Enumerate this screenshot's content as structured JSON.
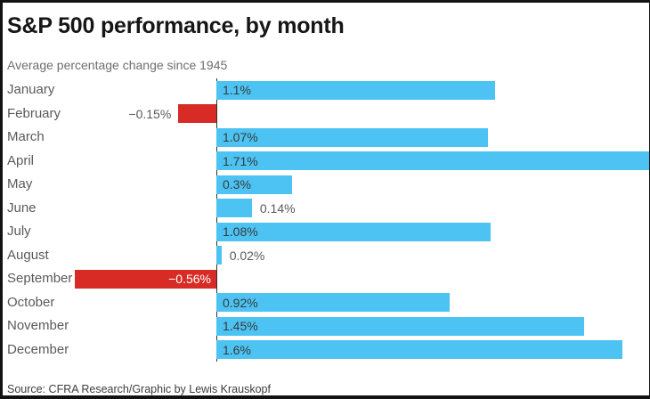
{
  "header": {
    "title": "S&P 500 performance, by month",
    "subtitle": "Average percentage change since 1945"
  },
  "footer": {
    "source": "Source: CFRA Research/Graphic by Lewis Krauskopf"
  },
  "colors": {
    "positive": "#4CC3F2",
    "negative": "#D82B26",
    "axis": "#2e2e2e",
    "value_inside": "#3a3a3a",
    "value_outside": "#5a5a5a",
    "value_on_negative": "#ffffff"
  },
  "chart_data": {
    "type": "bar",
    "orientation": "horizontal",
    "title": "S&P 500 performance, by month",
    "subtitle": "Average percentage change since 1945",
    "xlabel": "",
    "ylabel": "",
    "unit": "%",
    "xlim": [
      -0.6,
      1.71
    ],
    "grid": false,
    "legend": "none",
    "categories": [
      "January",
      "February",
      "March",
      "April",
      "May",
      "June",
      "July",
      "August",
      "September",
      "October",
      "November",
      "December"
    ],
    "values": [
      1.1,
      -0.15,
      1.07,
      1.71,
      0.3,
      0.14,
      1.08,
      0.02,
      -0.56,
      0.92,
      1.45,
      1.6
    ],
    "value_labels": [
      "1.1%",
      "−0.15%",
      "1.07%",
      "1.71%",
      "0.3%",
      "0.14%",
      "1.08%",
      "0.02%",
      "−0.56%",
      "0.92%",
      "1.45%",
      "1.6%"
    ]
  }
}
